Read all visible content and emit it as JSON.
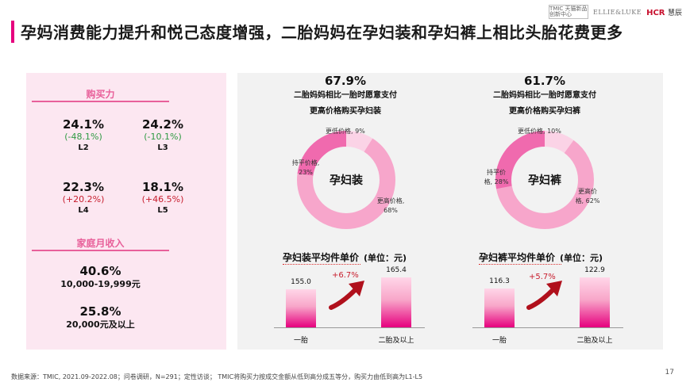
{
  "header": {
    "title": "孕妈消费能力提升和悦己态度增强，二胎妈妈在孕妇装和孕妇裤上相比头胎花费更多",
    "logos": {
      "tmic": "TMIC 天猫新品创新中心",
      "ellie": "ELLIE&LUKE",
      "hcr_brand": "HCR",
      "hcr_cn": "慧辰"
    }
  },
  "purchasing_power": {
    "title": "购买力",
    "items": [
      {
        "pct": "24.1%",
        "change": "(-48.1%)",
        "level": "L2"
      },
      {
        "pct": "24.2%",
        "change": "(-10.1%)",
        "level": "L3"
      },
      {
        "pct": "22.3%",
        "change": "(+20.2%)",
        "level": "L4"
      },
      {
        "pct": "18.1%",
        "change": "(+46.5%)",
        "level": "L5"
      }
    ]
  },
  "household_income": {
    "title": "家庭月收入",
    "items": [
      {
        "pct": "40.6%",
        "range": "10,000-19,999元"
      },
      {
        "pct": "25.8%",
        "range": "20,000元及以上"
      }
    ]
  },
  "donut_clothes": {
    "headline": "67.9%",
    "line1": "二胎妈妈相比一胎时愿意支付",
    "line2": "更高价格购买孕妇装",
    "center": "孕妇装",
    "seg_lower": {
      "label": "更低价格, 9%",
      "value": 9
    },
    "seg_flat_1": "持平价格,",
    "seg_flat_2": "23%",
    "seg_flat_value": 23,
    "seg_high_1": "更高价格,",
    "seg_high_2": "68%",
    "seg_high_value": 68
  },
  "donut_pants": {
    "headline": "61.7%",
    "line1": "二胎妈妈相比一胎时愿意支付",
    "line2": "更高价格购买孕妇裤",
    "center": "孕妇裤",
    "seg_lower": {
      "label": "更低价格, 10%",
      "value": 10
    },
    "seg_flat_1": "持平价",
    "seg_flat_2": "格, 28%",
    "seg_flat_value": 28,
    "seg_high_1": "更高价",
    "seg_high_2": "格, 62%",
    "seg_high_value": 62
  },
  "chart_data": [
    {
      "type": "bar",
      "title": "孕妇装平均件单价",
      "unit": "(单位：元)",
      "categories": [
        "一胎",
        "二胎及以上"
      ],
      "values": [
        155.0,
        165.4
      ],
      "value_labels": [
        "155.0",
        "165.4"
      ],
      "growth": "+6.7%"
    },
    {
      "type": "bar",
      "title": "孕妇裤平均件单价",
      "unit": "(单位：元)",
      "categories": [
        "一胎",
        "二胎及以上"
      ],
      "values": [
        116.3,
        122.9
      ],
      "value_labels": [
        "116.3",
        "122.9"
      ],
      "growth": "+5.7%"
    }
  ],
  "footer": {
    "note": "数据来源：TMIC, 2021.09-2022.08；问卷调研，N=291；定性访谈； TMIC将购买力按成交金额从低到高分成五等分，购买力由低到高为L1-L5",
    "page": "17"
  },
  "colors": {
    "accent": "#e6007e",
    "section_pink": "#e8609a",
    "neg": "#2f9a43",
    "pos": "#c81e2e"
  }
}
